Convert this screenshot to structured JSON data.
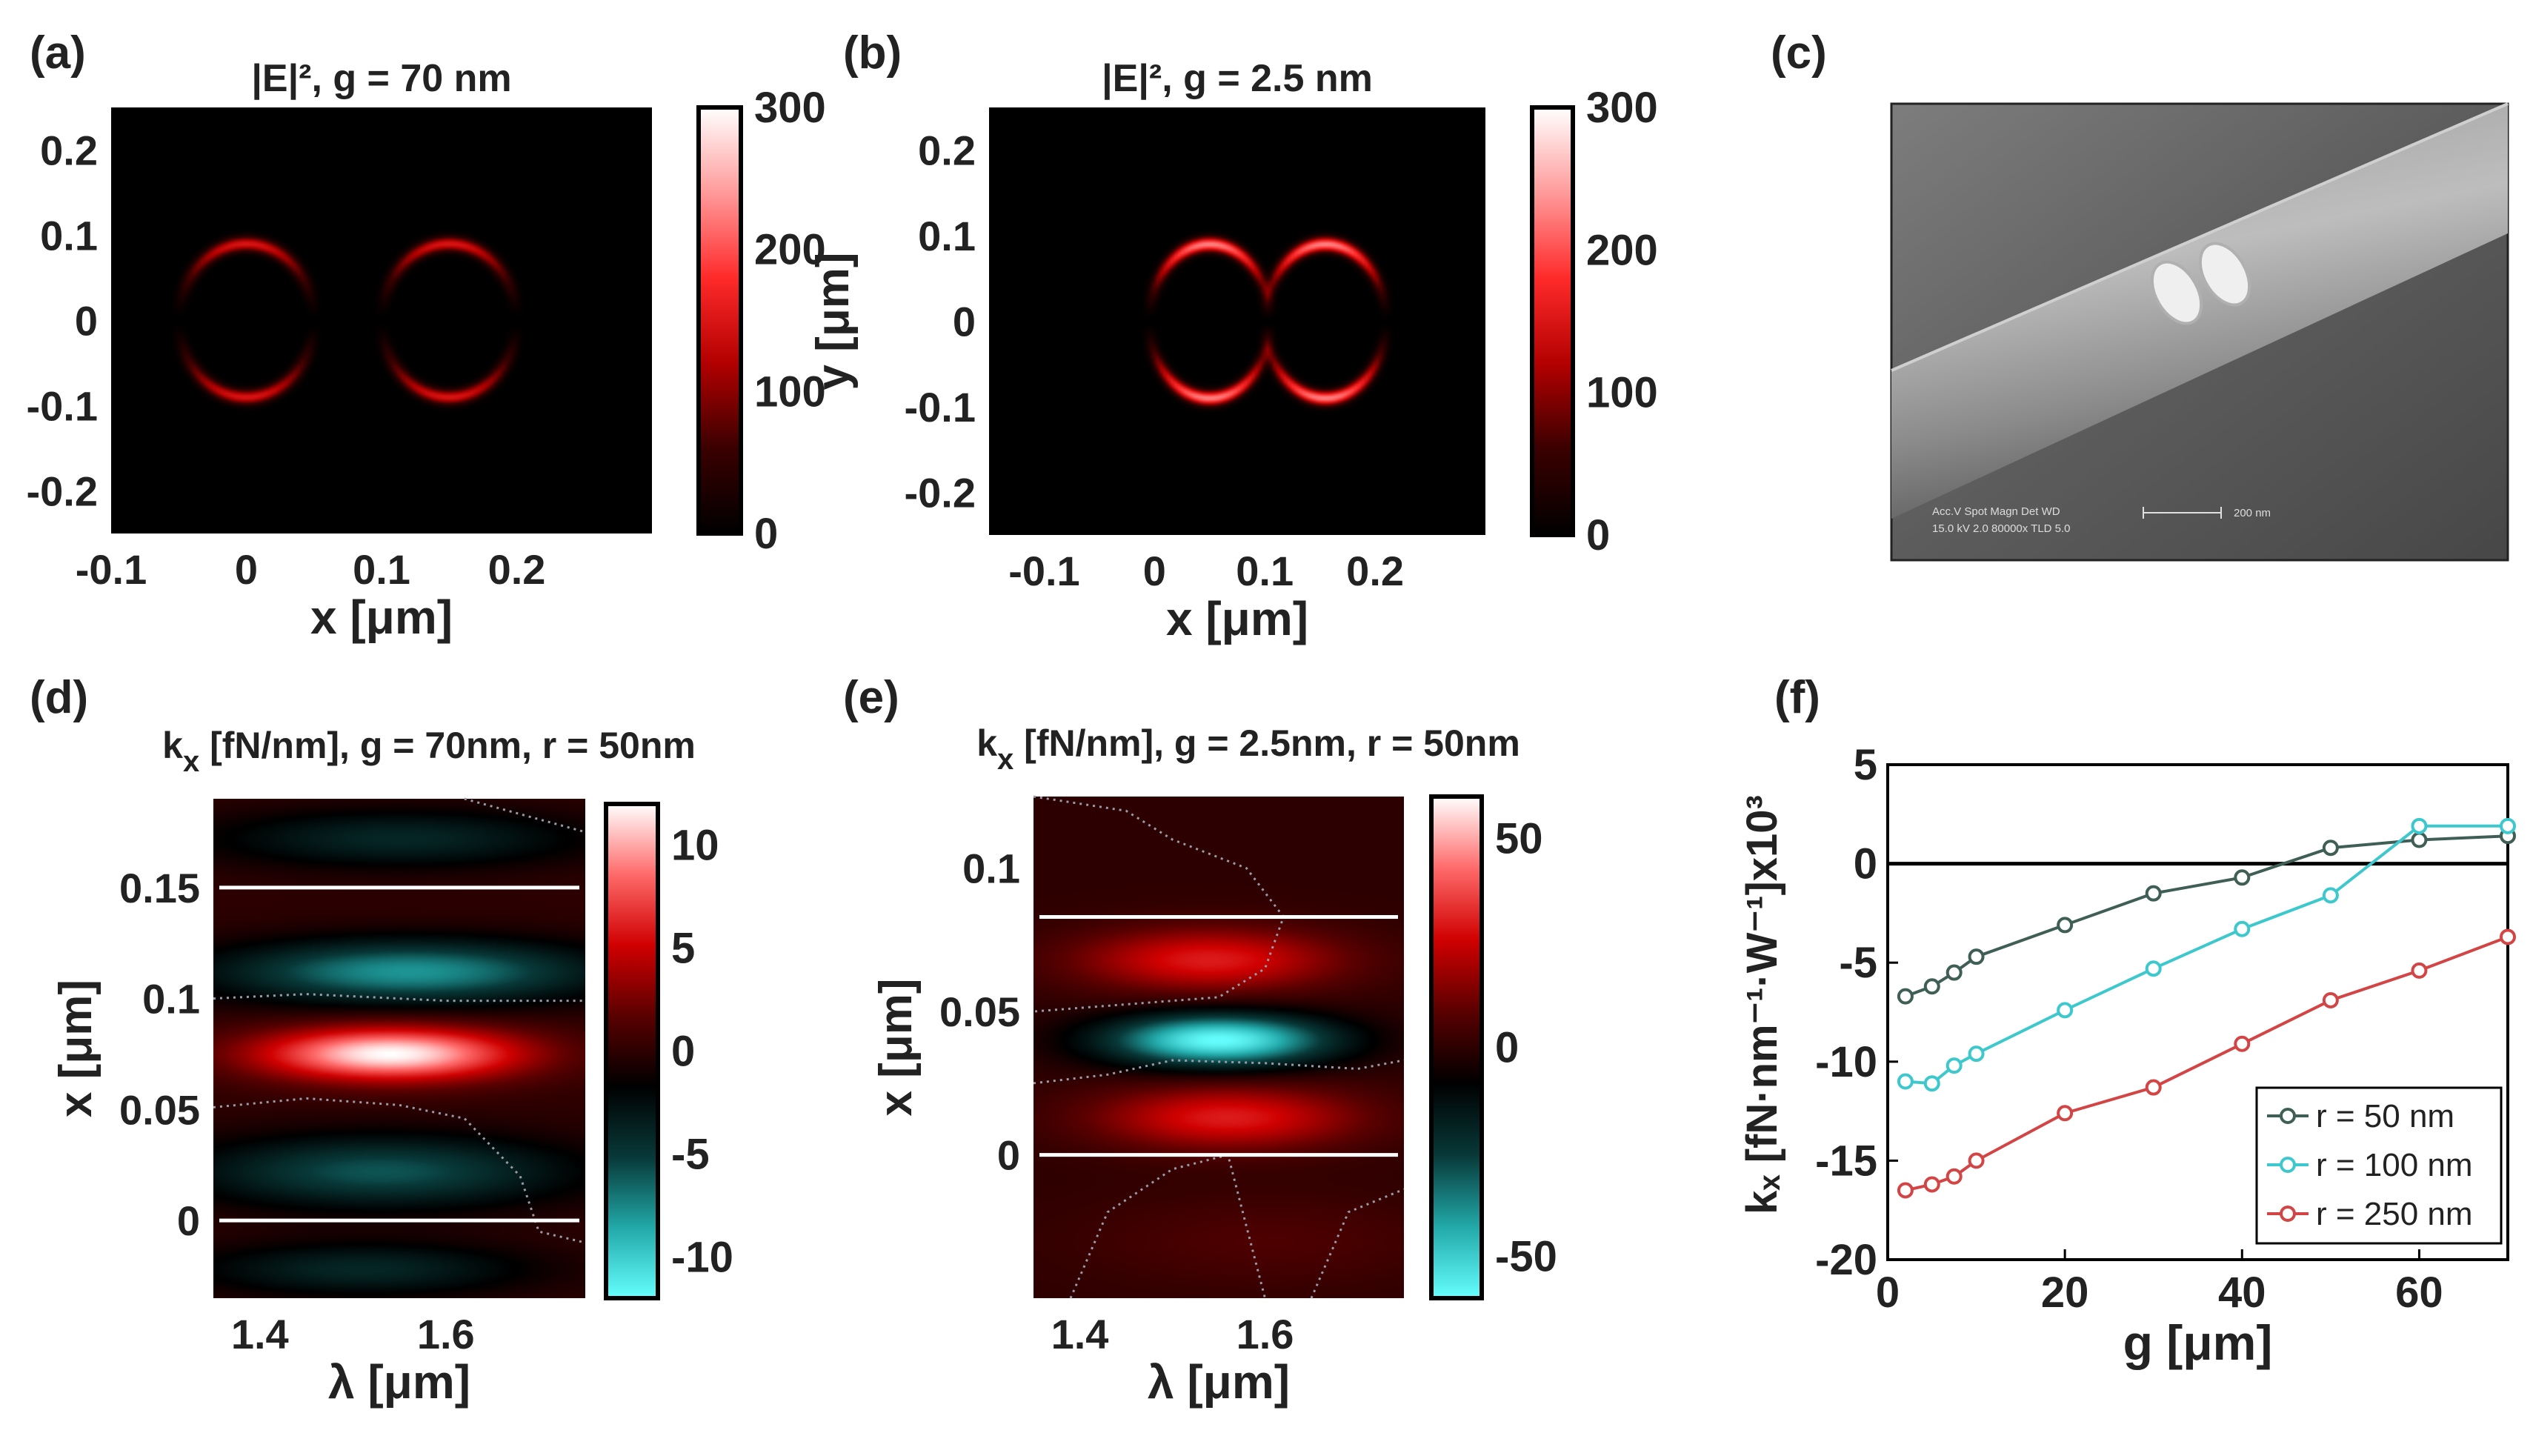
{
  "panel_labels": [
    "(a)",
    "(b)",
    "(c)",
    "(d)",
    "(e)",
    "(f)"
  ],
  "colors": {
    "hot_map": [
      "#000000",
      "#3a0000",
      "#b30000",
      "#ff2a2a",
      "#ff9a9a",
      "#ffffff"
    ],
    "diverging_map": [
      "#66ffff",
      "#22a8a8",
      "#083838",
      "#000000",
      "#5a0000",
      "#d00000",
      "#ff6a6a",
      "#ffffff"
    ],
    "series": [
      "#3f5e55",
      "#3cc8cc",
      "#d34545"
    ]
  },
  "sem": {
    "info_line1": "Acc.V   Spot Magn    Det  WD",
    "info_line2": "15.0 kV 2.0   80000x   TLD 5.0",
    "scale_label": "200 nm"
  },
  "chart_data": [
    {
      "id": "a",
      "type": "heatmap",
      "title": "|E|², g = 70 nm",
      "xlabel": "x [μm]",
      "ylabel": "y [μm]",
      "xlim": [
        -0.1,
        0.3
      ],
      "ylim": [
        -0.25,
        0.25
      ],
      "xticks": [
        -0.1,
        0,
        0.1,
        0.2
      ],
      "xtick_labels": [
        "-0.1",
        "0",
        "0.1",
        "0.2"
      ],
      "yticks": [
        0.2,
        0.1,
        0,
        -0.1,
        -0.2
      ],
      "ytick_labels": [
        "0.2",
        "0.1",
        "0",
        "-0.1",
        "-0.2"
      ],
      "colorbar": {
        "min": 0,
        "max": 300,
        "ticks": [
          300,
          200,
          100,
          0
        ],
        "tick_labels": [
          "300",
          "200",
          "100",
          "0"
        ]
      },
      "features": [
        {
          "shape": "arc-pair",
          "center": [
            0.0,
            0.0
          ],
          "semi_axis_x": 0.05,
          "semi_axis_y": 0.09,
          "peak": 150
        },
        {
          "shape": "arc-pair",
          "center": [
            0.15,
            0.0
          ],
          "semi_axis_x": 0.05,
          "semi_axis_y": 0.09,
          "peak": 150
        }
      ]
    },
    {
      "id": "b",
      "type": "heatmap",
      "title": "|E|², g = 2.5 nm",
      "xlabel": "x [μm]",
      "ylabel": "y [μm]",
      "xlim": [
        -0.15,
        0.3
      ],
      "ylim": [
        -0.25,
        0.25
      ],
      "xticks": [
        -0.1,
        0,
        0.1,
        0.2
      ],
      "xtick_labels": [
        "-0.1",
        "0",
        "0.1",
        "0.2"
      ],
      "yticks": [
        0.2,
        0.1,
        0,
        -0.1,
        -0.2
      ],
      "ytick_labels": [
        "0.2",
        "0.1",
        "0",
        "-0.1",
        "-0.2"
      ],
      "colorbar": {
        "min": 0,
        "max": 300,
        "ticks": [
          300,
          200,
          100,
          0
        ],
        "tick_labels": [
          "300",
          "200",
          "100",
          "0"
        ]
      },
      "features": [
        {
          "shape": "arc-pair",
          "center": [
            0.05,
            0.0
          ],
          "semi_axis_x": 0.055,
          "semi_axis_y": 0.09,
          "peak": 230
        },
        {
          "shape": "arc-pair",
          "center": [
            0.155,
            0.0
          ],
          "semi_axis_x": 0.055,
          "semi_axis_y": 0.09,
          "peak": 230
        }
      ]
    },
    {
      "id": "d",
      "type": "heatmap",
      "title": "kx [fN/nm], g = 70nm, r = 50nm",
      "title_sub": "x",
      "xlabel": "λ [μm]",
      "ylabel": "x [μm]",
      "xlim": [
        1.35,
        1.75
      ],
      "ylim": [
        -0.035,
        0.19
      ],
      "xticks": [
        1.4,
        1.6
      ],
      "xtick_labels": [
        "1.4",
        "1.6"
      ],
      "yticks": [
        0.15,
        0.1,
        0.05,
        0
      ],
      "ytick_labels": [
        "0.15",
        "0.1",
        "0.05",
        "0"
      ],
      "reference_lines_y": [
        0.15,
        0.0
      ],
      "colorbar": {
        "min": -12,
        "max": 12,
        "ticks": [
          10,
          5,
          0,
          -5,
          -10
        ],
        "tick_labels": [
          "10",
          "5",
          "0",
          "-5",
          "-10"
        ]
      },
      "bands": [
        {
          "y_center": 0.172,
          "y_width": 0.013,
          "lambda_center": 1.55,
          "lambda_width": 0.2,
          "value": -4
        },
        {
          "y_center": 0.112,
          "y_width": 0.014,
          "lambda_center": 1.56,
          "lambda_width": 0.2,
          "value": -8
        },
        {
          "y_center": 0.075,
          "y_width": 0.012,
          "lambda_center": 1.54,
          "lambda_width": 0.14,
          "value": 12
        },
        {
          "y_center": 0.022,
          "y_width": 0.016,
          "lambda_center": 1.53,
          "lambda_width": 0.2,
          "value": -6
        },
        {
          "y_center": -0.022,
          "y_width": 0.012,
          "lambda_center": 1.51,
          "lambda_width": 0.18,
          "value": -4
        }
      ],
      "contours": [
        [
          [
            1.35,
            0.1
          ],
          [
            1.45,
            0.102
          ],
          [
            1.6,
            0.099
          ],
          [
            1.75,
            0.099
          ]
        ],
        [
          [
            1.35,
            0.051
          ],
          [
            1.45,
            0.055
          ],
          [
            1.55,
            0.052
          ],
          [
            1.62,
            0.046
          ],
          [
            1.68,
            0.02
          ],
          [
            1.7,
            -0.005
          ],
          [
            1.75,
            -0.01
          ]
        ],
        [
          [
            1.62,
            0.19
          ],
          [
            1.75,
            0.175
          ]
        ]
      ]
    },
    {
      "id": "e",
      "type": "heatmap",
      "title": "kx [fN/nm], g = 2.5nm, r = 50nm",
      "title_sub": "x",
      "xlabel": "λ [μm]",
      "ylabel": "x [μm]",
      "xlim": [
        1.35,
        1.75
      ],
      "ylim": [
        -0.05,
        0.125
      ],
      "xticks": [
        1.4,
        1.6
      ],
      "xtick_labels": [
        "1.4",
        "1.6"
      ],
      "yticks": [
        0.1,
        0.05,
        0
      ],
      "ytick_labels": [
        "0.1",
        "0.05",
        "0"
      ],
      "reference_lines_y": [
        0.083,
        0.0
      ],
      "colorbar": {
        "min": -60,
        "max": 60,
        "ticks": [
          50,
          0,
          -50
        ],
        "tick_labels": [
          "50",
          "0",
          "-50"
        ]
      },
      "bands": [
        {
          "y_center": 0.068,
          "y_width": 0.011,
          "lambda_center": 1.54,
          "lambda_width": 0.14,
          "value": 30
        },
        {
          "y_center": 0.04,
          "y_width": 0.009,
          "lambda_center": 1.55,
          "lambda_width": 0.12,
          "value": -60
        },
        {
          "y_center": 0.013,
          "y_width": 0.011,
          "lambda_center": 1.56,
          "lambda_width": 0.14,
          "value": 30
        },
        {
          "y_center": -0.03,
          "y_width": 0.016,
          "lambda_center": 1.6,
          "lambda_width": 0.2,
          "value": 6
        }
      ],
      "contours": [
        [
          [
            1.35,
            0.125
          ],
          [
            1.45,
            0.12
          ],
          [
            1.5,
            0.11
          ],
          [
            1.58,
            0.1
          ],
          [
            1.62,
            0.083
          ],
          [
            1.6,
            0.065
          ],
          [
            1.55,
            0.055
          ],
          [
            1.35,
            0.05
          ]
        ],
        [
          [
            1.35,
            0.025
          ],
          [
            1.43,
            0.028
          ],
          [
            1.5,
            0.033
          ],
          [
            1.6,
            0.032
          ],
          [
            1.7,
            0.03
          ],
          [
            1.75,
            0.033
          ]
        ],
        [
          [
            1.39,
            -0.05
          ],
          [
            1.43,
            -0.02
          ],
          [
            1.5,
            -0.005
          ],
          [
            1.56,
            0.0
          ],
          [
            1.58,
            -0.025
          ],
          [
            1.6,
            -0.05
          ]
        ],
        [
          [
            1.65,
            -0.05
          ],
          [
            1.69,
            -0.02
          ],
          [
            1.75,
            -0.012
          ]
        ]
      ]
    },
    {
      "id": "f",
      "type": "line",
      "xlabel": "g [μm]",
      "ylabel": "kₓ [fN·nm⁻¹·W⁻¹]x10³",
      "xlim": [
        0,
        70
      ],
      "ylim": [
        -20,
        5
      ],
      "xticks": [
        0,
        20,
        40,
        60
      ],
      "xtick_labels": [
        "0",
        "20",
        "40",
        "60"
      ],
      "yticks": [
        5,
        0,
        -5,
        -10,
        -15,
        -20
      ],
      "ytick_labels": [
        "5",
        "0",
        "-5",
        "-10",
        "-15",
        "-20"
      ],
      "hline": 0,
      "legend_position": "bottom-right",
      "series": [
        {
          "name": "r = 50 nm",
          "x": [
            2,
            5,
            7.5,
            10,
            20,
            30,
            40,
            50,
            60,
            70
          ],
          "y": [
            -6.7,
            -6.2,
            -5.5,
            -4.7,
            -3.1,
            -1.5,
            -0.7,
            0.8,
            1.2,
            1.4
          ]
        },
        {
          "name": "r = 100 nm",
          "x": [
            2,
            5,
            7.5,
            10,
            20,
            30,
            40,
            50,
            60,
            70
          ],
          "y": [
            -11.0,
            -11.1,
            -10.2,
            -9.6,
            -7.4,
            -5.3,
            -3.3,
            -1.6,
            1.9,
            1.9
          ]
        },
        {
          "name": "r = 250 nm",
          "x": [
            2,
            5,
            7.5,
            10,
            20,
            30,
            40,
            50,
            60,
            70
          ],
          "y": [
            -16.5,
            -16.2,
            -15.8,
            -15.0,
            -12.6,
            -11.3,
            -9.1,
            -6.9,
            -5.4,
            -3.7
          ]
        }
      ]
    }
  ]
}
